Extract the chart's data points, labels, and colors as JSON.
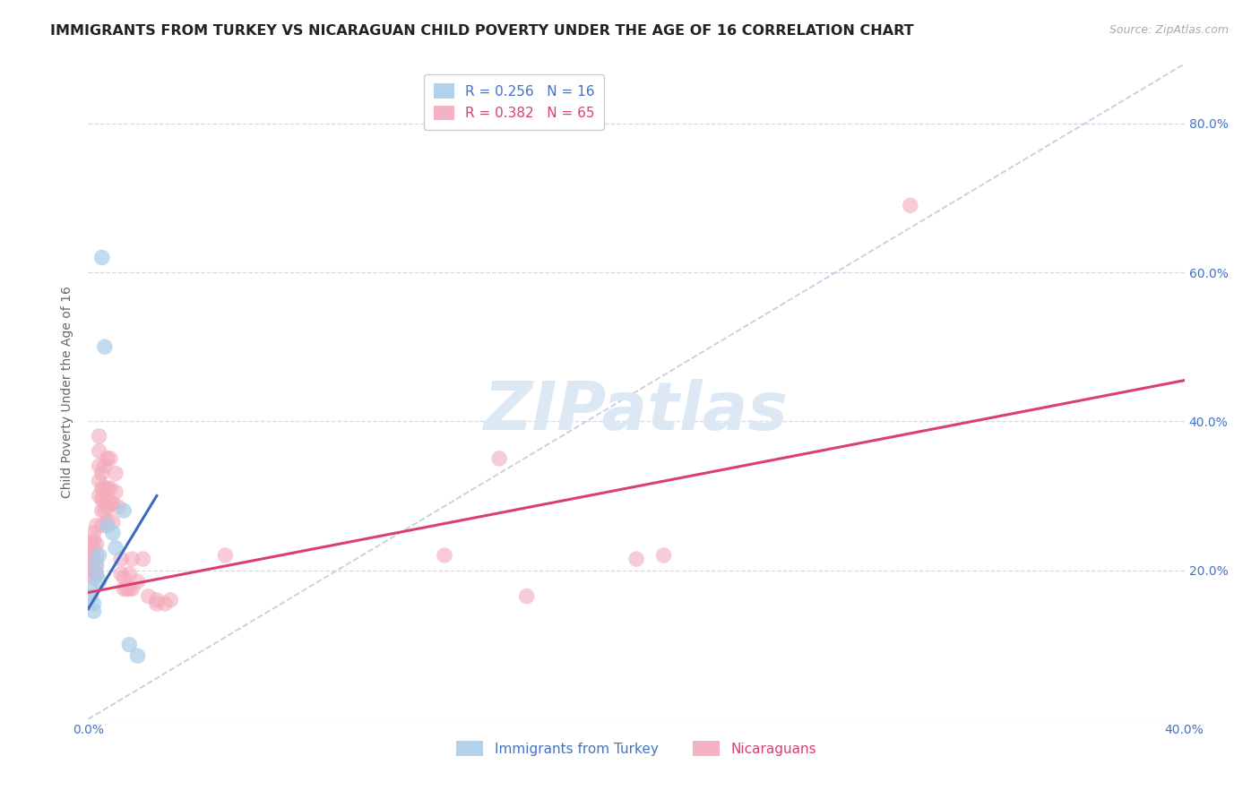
{
  "title": "IMMIGRANTS FROM TURKEY VS NICARAGUAN CHILD POVERTY UNDER THE AGE OF 16 CORRELATION CHART",
  "source": "Source: ZipAtlas.com",
  "ylabel": "Child Poverty Under the Age of 16",
  "xlim": [
    0.0,
    0.4
  ],
  "ylim": [
    0.0,
    0.88
  ],
  "yticks": [
    0.0,
    0.2,
    0.4,
    0.6,
    0.8
  ],
  "ytick_labels": [
    "",
    "20.0%",
    "40.0%",
    "60.0%",
    "80.0%"
  ],
  "xtick_positions": [
    0.0,
    0.1,
    0.2,
    0.3,
    0.4
  ],
  "xtick_labels": [
    "0.0%",
    "",
    "",
    "",
    "40.0%"
  ],
  "legend_row1": "R = 0.256   N = 16",
  "legend_row2": "R = 0.382   N = 65",
  "blue_scatter_x": [
    0.001,
    0.001,
    0.002,
    0.002,
    0.003,
    0.003,
    0.004,
    0.004,
    0.005,
    0.006,
    0.007,
    0.009,
    0.01,
    0.013,
    0.015,
    0.018
  ],
  "blue_scatter_y": [
    0.175,
    0.165,
    0.155,
    0.145,
    0.21,
    0.195,
    0.22,
    0.185,
    0.62,
    0.5,
    0.26,
    0.25,
    0.23,
    0.28,
    0.1,
    0.085
  ],
  "pink_scatter_x": [
    0.001,
    0.001,
    0.001,
    0.001,
    0.001,
    0.002,
    0.002,
    0.002,
    0.002,
    0.002,
    0.002,
    0.003,
    0.003,
    0.003,
    0.003,
    0.003,
    0.004,
    0.004,
    0.004,
    0.004,
    0.004,
    0.005,
    0.005,
    0.005,
    0.005,
    0.005,
    0.006,
    0.006,
    0.006,
    0.006,
    0.007,
    0.007,
    0.007,
    0.007,
    0.008,
    0.008,
    0.008,
    0.009,
    0.009,
    0.01,
    0.01,
    0.011,
    0.012,
    0.012,
    0.013,
    0.013,
    0.014,
    0.015,
    0.015,
    0.016,
    0.016,
    0.018,
    0.02,
    0.022,
    0.025,
    0.025,
    0.028,
    0.03,
    0.05,
    0.13,
    0.21,
    0.15,
    0.16,
    0.2,
    0.3
  ],
  "pink_scatter_y": [
    0.195,
    0.205,
    0.215,
    0.225,
    0.235,
    0.19,
    0.2,
    0.215,
    0.23,
    0.24,
    0.25,
    0.195,
    0.205,
    0.22,
    0.235,
    0.26,
    0.3,
    0.32,
    0.34,
    0.36,
    0.38,
    0.26,
    0.28,
    0.295,
    0.31,
    0.33,
    0.28,
    0.295,
    0.31,
    0.34,
    0.265,
    0.285,
    0.31,
    0.35,
    0.29,
    0.31,
    0.35,
    0.265,
    0.29,
    0.305,
    0.33,
    0.285,
    0.195,
    0.215,
    0.175,
    0.19,
    0.175,
    0.195,
    0.175,
    0.175,
    0.215,
    0.185,
    0.215,
    0.165,
    0.16,
    0.155,
    0.155,
    0.16,
    0.22,
    0.22,
    0.22,
    0.35,
    0.165,
    0.215,
    0.69
  ],
  "blue_line_x": [
    0.0,
    0.025
  ],
  "blue_line_y": [
    0.148,
    0.3
  ],
  "pink_line_x": [
    0.0,
    0.4
  ],
  "pink_line_y": [
    0.17,
    0.455
  ],
  "diag_line_x": [
    0.0,
    0.4
  ],
  "diag_line_y": [
    0.0,
    0.88
  ],
  "blue_scatter_color": "#aacce8",
  "pink_scatter_color": "#f4aabb",
  "blue_line_color": "#3a6abf",
  "pink_line_color": "#d94070",
  "diag_line_color": "#b8c8d8",
  "axis_label_color": "#4472c4",
  "pink_text_color": "#d94070",
  "grid_color": "#d0d8e8",
  "watermark_text": "ZIPatlas",
  "watermark_color": "#dce8f4",
  "background_color": "#ffffff",
  "title_fontsize": 11.5,
  "ylabel_fontsize": 10,
  "tick_fontsize": 10,
  "legend_fontsize": 11
}
